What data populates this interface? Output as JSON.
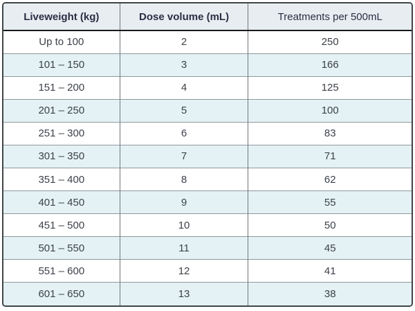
{
  "table": {
    "columns": [
      {
        "label": "Liveweight (kg)"
      },
      {
        "label": "Dose volume (mL)"
      },
      {
        "label": "Treatments per 500mL"
      }
    ],
    "rows": [
      [
        "Up to 100",
        2,
        250
      ],
      [
        "101 – 150",
        3,
        166
      ],
      [
        "151 – 200",
        4,
        125
      ],
      [
        "201 – 250",
        5,
        100
      ],
      [
        "251 – 300",
        6,
        83
      ],
      [
        "301 – 350",
        7,
        71
      ],
      [
        "351 – 400",
        8,
        62
      ],
      [
        "401 – 450",
        9,
        55
      ],
      [
        "451 – 500",
        10,
        50
      ],
      [
        "501 – 550",
        11,
        45
      ],
      [
        "551 – 600",
        12,
        41
      ],
      [
        "601 – 650",
        13,
        38
      ]
    ]
  },
  "colors": {
    "header_bg": "#e7edf0",
    "stripe_bg": "#e4f2f5",
    "row_bg": "#ffffff",
    "outer_border": "#3f4446",
    "header_border": "#17191b",
    "column_border": "#6f7579",
    "row_border": "#8e979b",
    "header_text": "#2a2f45",
    "body_text": "#3c4149"
  }
}
